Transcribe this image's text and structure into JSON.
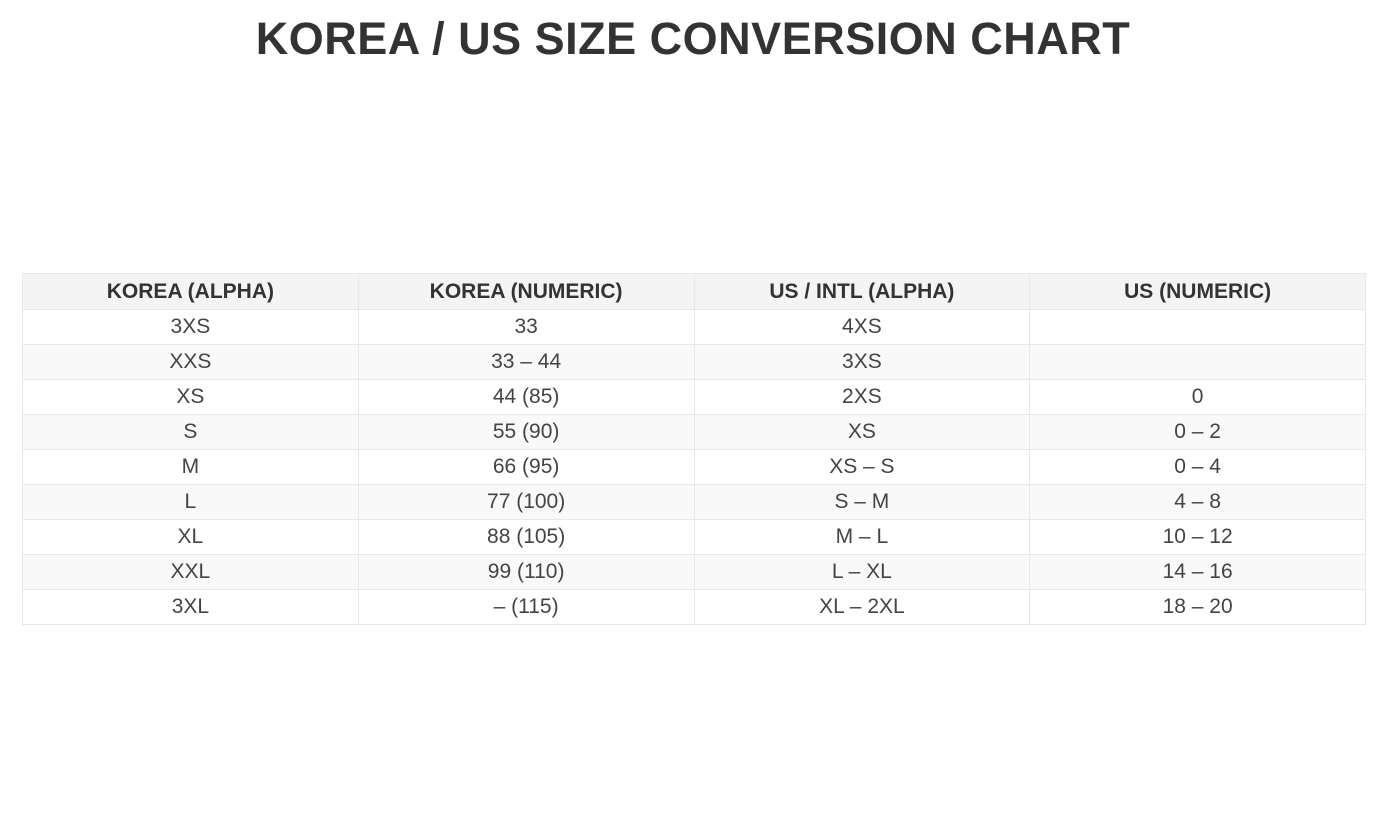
{
  "page": {
    "title": "KOREA / US SIZE CONVERSION CHART"
  },
  "colors": {
    "title_text": "#333333",
    "header_bg": "#f4f4f4",
    "header_text": "#333333",
    "body_text": "#444444",
    "stripe_bg": "#f9f9f9",
    "row_bg": "#ffffff",
    "border": "#e8e8e8"
  },
  "chart_data": {
    "type": "table",
    "title": "KOREA / US SIZE CONVERSION CHART",
    "columns": [
      "KOREA (ALPHA)",
      "KOREA (NUMERIC)",
      "US / INTL (ALPHA)",
      "US (NUMERIC)"
    ],
    "rows": [
      [
        "3XS",
        "33",
        "4XS",
        ""
      ],
      [
        "XXS",
        "33 – 44",
        "3XS",
        ""
      ],
      [
        "XS",
        "44 (85)",
        "2XS",
        "0"
      ],
      [
        "S",
        "55 (90)",
        "XS",
        "0 – 2"
      ],
      [
        "M",
        "66 (95)",
        "XS – S",
        "0 – 4"
      ],
      [
        "L",
        "77 (100)",
        "S – M",
        "4 – 8"
      ],
      [
        "XL",
        "88 (105)",
        "M – L",
        "10 – 12"
      ],
      [
        "XXL",
        "99 (110)",
        "L – XL",
        "14 – 16"
      ],
      [
        "3XL",
        "– (115)",
        "XL – 2XL",
        "18 – 20"
      ]
    ]
  }
}
